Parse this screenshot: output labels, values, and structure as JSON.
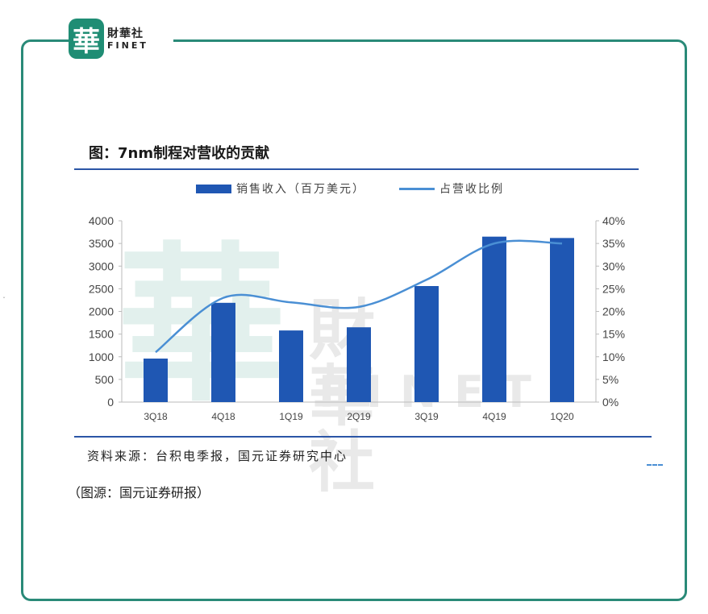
{
  "logo": {
    "mark": "華",
    "cn": "財華社",
    "en": "FINET"
  },
  "figure": {
    "title": "图：7nm制程对营收的贡献",
    "source": "资料来源：台积电季报，国元证券研究中心",
    "caption": "（图源：国元证券研报）"
  },
  "watermark": {
    "mark": "華",
    "cn": "財華社",
    "en": "FINET"
  },
  "chart_data": {
    "type": "bar",
    "categories": [
      "3Q18",
      "4Q18",
      "1Q19",
      "2Q19",
      "3Q19",
      "4Q19",
      "1Q20"
    ],
    "series": [
      {
        "name": "销售收入（百万美元）",
        "type": "bar",
        "axis": "left",
        "values": [
          960,
          2190,
          1580,
          1650,
          2560,
          3650,
          3620
        ]
      },
      {
        "name": "占营收比例",
        "type": "line",
        "axis": "right",
        "values": [
          0.11,
          0.23,
          0.22,
          0.21,
          0.27,
          0.35,
          0.35
        ]
      }
    ],
    "ylim_left": [
      0,
      4000
    ],
    "yticks_left": [
      "0",
      "500",
      "1000",
      "1500",
      "2000",
      "2500",
      "3000",
      "3500",
      "4000"
    ],
    "ylim_right": [
      0,
      0.4
    ],
    "yticks_right": [
      "0%",
      "5%",
      "10%",
      "15%",
      "20%",
      "25%",
      "30%",
      "35%",
      "40%"
    ],
    "colors": {
      "bar": "#1f57b3",
      "line": "#4a8fd4",
      "axis": "#bbbbbb"
    },
    "legend_position": "top"
  }
}
